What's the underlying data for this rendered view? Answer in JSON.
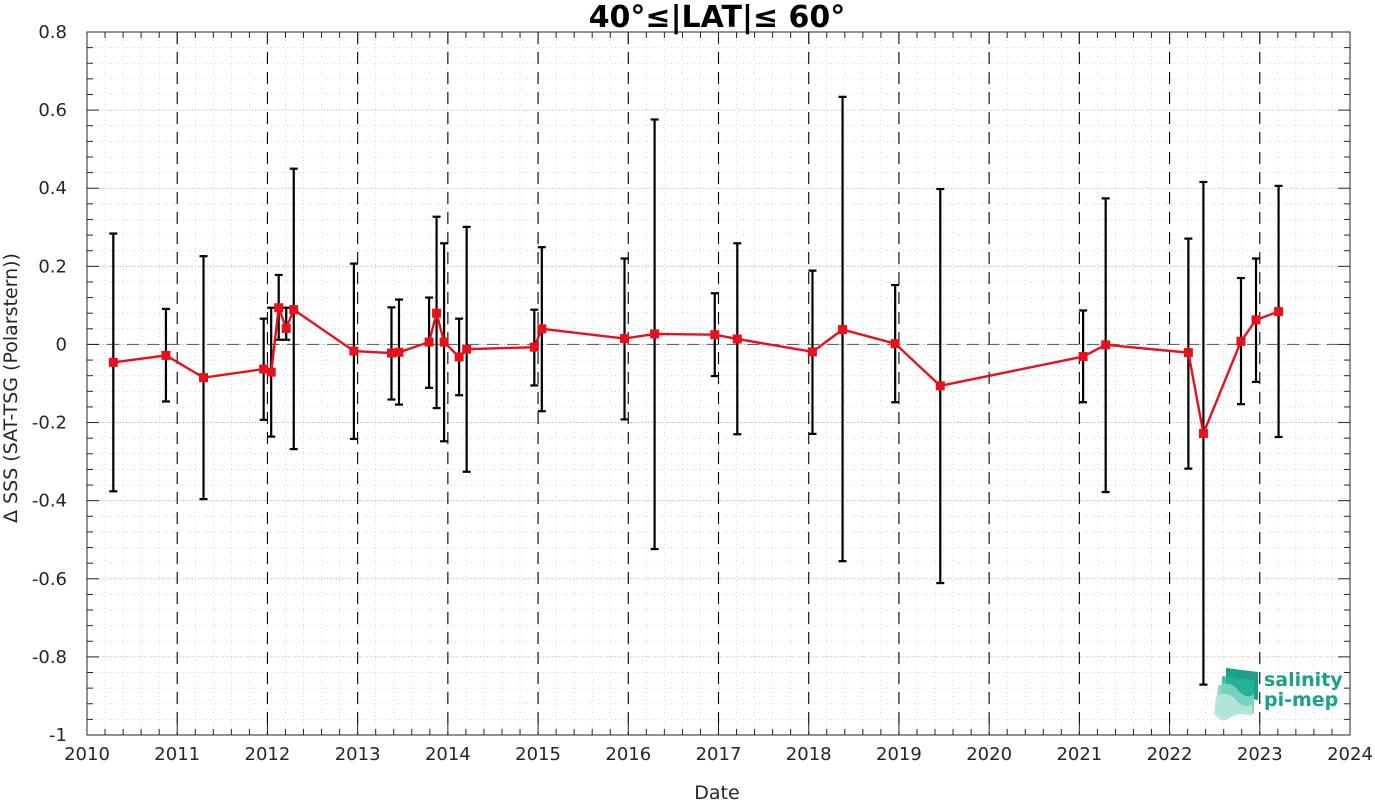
{
  "chart_data": {
    "type": "line",
    "title": "40°≤|LAT|≤ 60°",
    "xlabel": "Date",
    "ylabel": "Δ SSS (SAT-TSG (Polarstern))",
    "xlim": [
      2010,
      2024
    ],
    "ylim": [
      -1,
      0.8
    ],
    "x_ticks": [
      "2010",
      "2011",
      "2012",
      "2013",
      "2014",
      "2015",
      "2016",
      "2017",
      "2018",
      "2019",
      "2020",
      "2021",
      "2022",
      "2023",
      "2024"
    ],
    "y_ticks": [
      "-1",
      "-0.8",
      "-0.6",
      "-0.4",
      "-0.2",
      "0",
      "0.2",
      "0.4",
      "0.6",
      "0.8"
    ],
    "grid": "minor dotted",
    "zero_line": "dashed",
    "year_lines": "dashed",
    "colors": {
      "series": "#e8101a",
      "errorbar": "#000000",
      "logo": "#1aa187"
    },
    "series": [
      {
        "points": [
          {
            "x": "2010-04",
            "y": -0.046,
            "lo": -0.376,
            "hi": 0.284
          },
          {
            "x": "2010-11",
            "y": -0.028,
            "lo": -0.146,
            "hi": 0.091
          },
          {
            "x": "2011-04",
            "y": -0.085,
            "lo": -0.396,
            "hi": 0.226
          },
          {
            "x": "2011-12",
            "y": -0.063,
            "lo": -0.193,
            "hi": 0.066
          },
          {
            "x": "2012-01",
            "y": -0.071,
            "lo": -0.236,
            "hi": 0.094
          },
          {
            "x": "2012-02",
            "y": 0.094,
            "lo": 0.012,
            "hi": 0.178
          },
          {
            "x": "2012-03",
            "y": 0.041,
            "lo": 0.012,
            "hi": 0.094
          },
          {
            "x": "2012-04",
            "y": 0.089,
            "lo": -0.268,
            "hi": 0.45
          },
          {
            "x": "2012-12",
            "y": -0.017,
            "lo": -0.242,
            "hi": 0.207
          },
          {
            "x": "2013-05",
            "y": -0.022,
            "lo": -0.141,
            "hi": 0.095
          },
          {
            "x": "2013-06",
            "y": -0.02,
            "lo": -0.154,
            "hi": 0.115
          },
          {
            "x": "2013-10",
            "y": 0.006,
            "lo": -0.111,
            "hi": 0.12
          },
          {
            "x": "2013-11",
            "y": 0.08,
            "lo": -0.163,
            "hi": 0.327
          },
          {
            "x": "2013-12",
            "y": 0.006,
            "lo": -0.248,
            "hi": 0.259
          },
          {
            "x": "2014-02",
            "y": -0.032,
            "lo": -0.13,
            "hi": 0.066
          },
          {
            "x": "2014-03",
            "y": -0.012,
            "lo": -0.326,
            "hi": 0.301
          },
          {
            "x": "2014-12",
            "y": -0.007,
            "lo": -0.105,
            "hi": 0.089
          },
          {
            "x": "2015-01",
            "y": 0.04,
            "lo": -0.171,
            "hi": 0.249
          },
          {
            "x": "2015-12",
            "y": 0.015,
            "lo": -0.192,
            "hi": 0.22
          },
          {
            "x": "2016-04",
            "y": 0.027,
            "lo": -0.524,
            "hi": 0.576
          },
          {
            "x": "2016-12",
            "y": 0.025,
            "lo": -0.081,
            "hi": 0.131
          },
          {
            "x": "2017-03",
            "y": 0.014,
            "lo": -0.23,
            "hi": 0.259
          },
          {
            "x": "2018-01",
            "y": -0.019,
            "lo": -0.229,
            "hi": 0.189
          },
          {
            "x": "2018-05",
            "y": 0.038,
            "lo": -0.555,
            "hi": 0.634
          },
          {
            "x": "2018-12",
            "y": 0.002,
            "lo": -0.148,
            "hi": 0.152
          },
          {
            "x": "2019-06",
            "y": -0.106,
            "lo": -0.611,
            "hi": 0.398
          },
          {
            "x": "2021-01",
            "y": -0.031,
            "lo": -0.148,
            "hi": 0.087
          },
          {
            "x": "2021-04",
            "y": -0.001,
            "lo": -0.378,
            "hi": 0.374
          },
          {
            "x": "2022-03",
            "y": -0.021,
            "lo": -0.318,
            "hi": 0.271
          },
          {
            "x": "2022-05",
            "y": -0.228,
            "lo": -0.871,
            "hi": 0.416
          },
          {
            "x": "2022-10",
            "y": 0.008,
            "lo": -0.153,
            "hi": 0.17
          },
          {
            "x": "2022-12",
            "y": 0.063,
            "lo": -0.096,
            "hi": 0.22
          },
          {
            "x": "2023-03",
            "y": 0.084,
            "lo": -0.237,
            "hi": 0.406
          }
        ]
      }
    ]
  },
  "logo": {
    "line1": "salinity",
    "line2": "pi-mep"
  }
}
